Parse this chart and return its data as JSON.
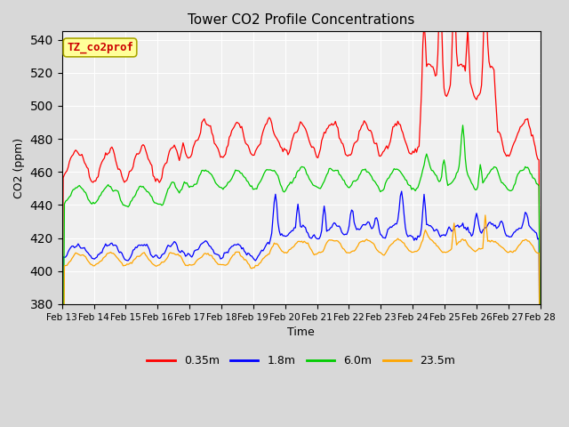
{
  "title": "Tower CO2 Profile Concentrations",
  "xlabel": "Time",
  "ylabel": "CO2 (ppm)",
  "ylim": [
    380,
    545
  ],
  "yticks": [
    380,
    400,
    420,
    440,
    460,
    480,
    500,
    520,
    540
  ],
  "x_labels": [
    "Feb 13",
    "Feb 14",
    "Feb 15",
    "Feb 16",
    "Feb 17",
    "Feb 18",
    "Feb 19",
    "Feb 20",
    "Feb 21",
    "Feb 22",
    "Feb 23",
    "Feb 24",
    "Feb 25",
    "Feb 26",
    "Feb 27",
    "Feb 28"
  ],
  "legend_entries": [
    "0.35m",
    "1.8m",
    "6.0m",
    "23.5m"
  ],
  "line_colors": [
    "#ff0000",
    "#0000ff",
    "#00cc00",
    "#ffa500"
  ],
  "annotation_text": "TZ_co2prof",
  "annotation_color": "#cc0000",
  "annotation_bg": "#ffff99",
  "fig_bg": "#d8d8d8",
  "plot_bg": "#f0f0f0",
  "n_points": 384
}
